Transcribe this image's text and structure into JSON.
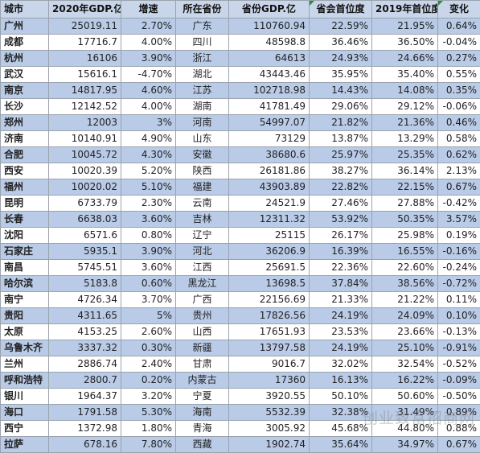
{
  "headers": [
    "城市",
    "2020年GDP.亿",
    "增速",
    "所在省份",
    "省份GDP.亿",
    "省会首位度",
    "2019年首位度",
    "变化"
  ],
  "header_marks": [
    false,
    false,
    false,
    false,
    false,
    true,
    false,
    true
  ],
  "rows": [
    [
      "广州",
      "25019.11",
      "2.70%",
      "广东",
      "110760.94",
      "22.59%",
      "21.95%",
      "0.64%"
    ],
    [
      "成都",
      "17716.7",
      "4.00%",
      "四川",
      "48598.8",
      "36.46%",
      "36.50%",
      "-0.04%"
    ],
    [
      "杭州",
      "16106",
      "3.90%",
      "浙江",
      "64613",
      "24.93%",
      "24.66%",
      "0.27%"
    ],
    [
      "武汉",
      "15616.1",
      "-4.70%",
      "湖北",
      "43443.46",
      "35.95%",
      "35.40%",
      "0.55%"
    ],
    [
      "南京",
      "14817.95",
      "4.60%",
      "江苏",
      "102718.98",
      "14.43%",
      "14.08%",
      "0.35%"
    ],
    [
      "长沙",
      "12142.52",
      "4.00%",
      "湖南",
      "41781.49",
      "29.06%",
      "29.12%",
      "-0.06%"
    ],
    [
      "郑州",
      "12003",
      "3%",
      "河南",
      "54997.07",
      "21.82%",
      "21.36%",
      "0.46%"
    ],
    [
      "济南",
      "10140.91",
      "4.90%",
      "山东",
      "73129",
      "13.87%",
      "13.29%",
      "0.58%"
    ],
    [
      "合肥",
      "10045.72",
      "4.30%",
      "安徽",
      "38680.6",
      "25.97%",
      "25.35%",
      "0.62%"
    ],
    [
      "西安",
      "10020.39",
      "5.20%",
      "陕西",
      "26181.86",
      "38.27%",
      "36.14%",
      "2.13%"
    ],
    [
      "福州",
      "10020.02",
      "5.10%",
      "福建",
      "43903.89",
      "22.82%",
      "22.15%",
      "0.67%"
    ],
    [
      "昆明",
      "6733.79",
      "2.30%",
      "云南",
      "24521.9",
      "27.46%",
      "27.88%",
      "-0.42%"
    ],
    [
      "长春",
      "6638.03",
      "3.60%",
      "吉林",
      "12311.32",
      "53.92%",
      "50.35%",
      "3.57%"
    ],
    [
      "沈阳",
      "6571.6",
      "0.80%",
      "辽宁",
      "25115",
      "26.17%",
      "25.98%",
      "0.19%"
    ],
    [
      "石家庄",
      "5935.1",
      "3.90%",
      "河北",
      "36206.9",
      "16.39%",
      "16.55%",
      "-0.16%"
    ],
    [
      "南昌",
      "5745.51",
      "3.60%",
      "江西",
      "25691.5",
      "22.36%",
      "22.60%",
      "-0.24%"
    ],
    [
      "哈尔滨",
      "5183.8",
      "0.60%",
      "黑龙江",
      "13698.5",
      "37.84%",
      "38.56%",
      "-0.72%"
    ],
    [
      "南宁",
      "4726.34",
      "3.70%",
      "广西",
      "22156.69",
      "21.33%",
      "21.22%",
      "0.11%"
    ],
    [
      "贵阳",
      "4311.65",
      "5%",
      "贵州",
      "17826.56",
      "24.19%",
      "24.09%",
      "0.10%"
    ],
    [
      "太原",
      "4153.25",
      "2.60%",
      "山西",
      "17651.93",
      "23.53%",
      "23.66%",
      "-0.13%"
    ],
    [
      "乌鲁木齐",
      "3337.32",
      "0.30%",
      "新疆",
      "13797.58",
      "24.19%",
      "25.10%",
      "-0.91%"
    ],
    [
      "兰州",
      "2886.74",
      "2.40%",
      "甘肃",
      "9016.7",
      "32.02%",
      "32.54%",
      "-0.52%"
    ],
    [
      "呼和浩特",
      "2800.7",
      "0.20%",
      "内蒙古",
      "17360",
      "16.13%",
      "16.22%",
      "-0.09%"
    ],
    [
      "银川",
      "1964.37",
      "3.20%",
      "宁夏",
      "3920.55",
      "50.10%",
      "50.60%",
      "-0.50%"
    ],
    [
      "海口",
      "1791.58",
      "5.30%",
      "海南",
      "5532.39",
      "32.38%",
      "31.49%",
      "0.89%"
    ],
    [
      "西宁",
      "1372.98",
      "1.80%",
      "青海",
      "3005.92",
      "45.68%",
      "44.80%",
      "0.88%"
    ],
    [
      "拉萨",
      "678.16",
      "7.80%",
      "西藏",
      "1902.74",
      "35.64%",
      "34.97%",
      "0.67%"
    ]
  ],
  "watermark": "创业致富招商网"
}
